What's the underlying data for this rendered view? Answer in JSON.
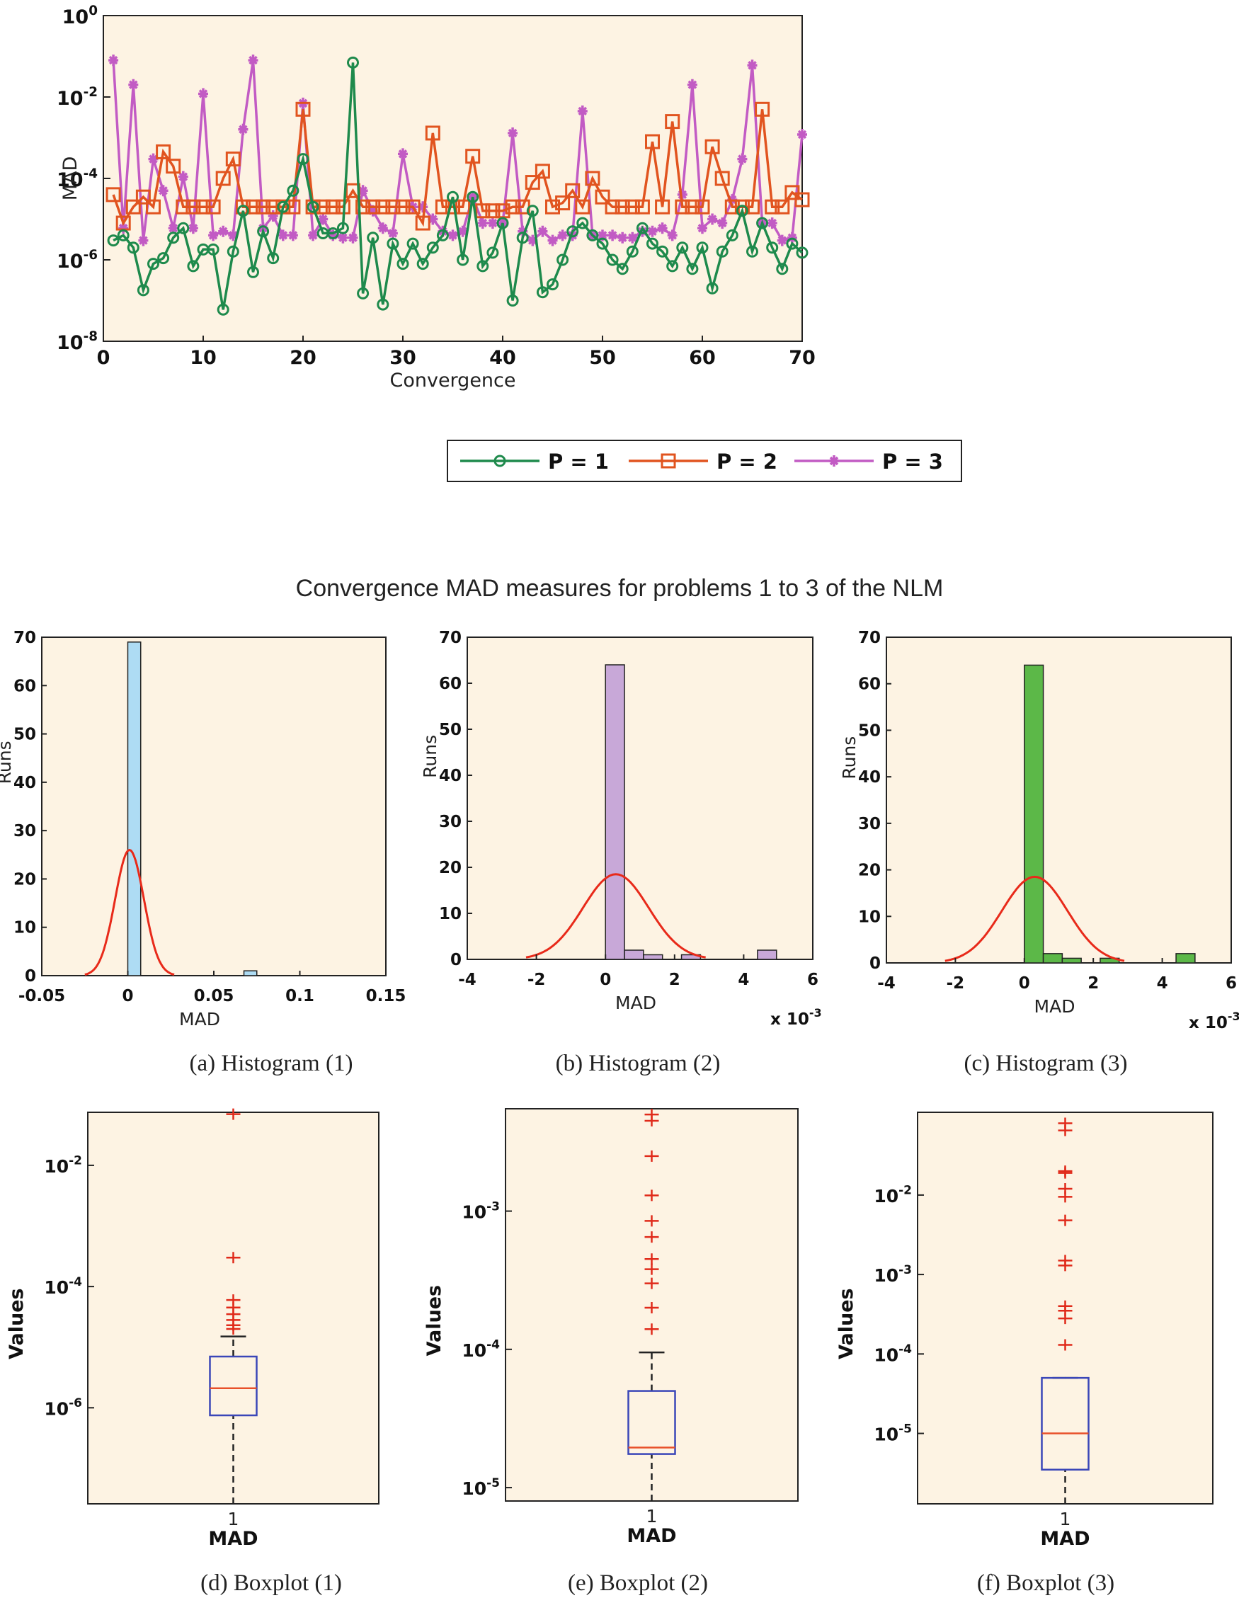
{
  "figure_title": "Convergence MAD measures for problems 1 to 3 of the NLM",
  "colors": {
    "panel_bg": "#fdf3e3",
    "p1": "#1e8a4c",
    "p2": "#e1541f",
    "p3": "#c25bc4",
    "hist1": "#aedcf4",
    "hist2": "#c8a8d8",
    "hist3": "#5cb848",
    "normal_curve": "#e82a1a",
    "box": "#3a46b8",
    "median": "#e8502a",
    "outlier": "#e02a1a"
  },
  "captions": {
    "a": "(a)  Histogram (1)",
    "b": "(b)  Histogram (2)",
    "c": "(c)  Histogram (3)",
    "d": "(d)  Boxplot (1)",
    "e": "(e)  Boxplot (2)",
    "f": "(f)  Boxplot (3)"
  },
  "chart_data": [
    {
      "id": "main",
      "type": "line",
      "title": "Convergence MAD measures for problems 1 to 3 of the NLM",
      "xlabel": "Convergence",
      "ylabel": "MAD",
      "yscale": "log",
      "xlim": [
        0,
        70
      ],
      "ylim_exp": [
        -8,
        0
      ],
      "x_ticks": [
        "0",
        "10",
        "20",
        "30",
        "40",
        "50",
        "60",
        "70"
      ],
      "y_tick_exponents": [
        "0",
        "-2",
        "-4",
        "-6",
        "-8"
      ],
      "y_tick_base": "10",
      "legend": [
        "P = 1",
        "P = 2",
        "P = 3"
      ],
      "x": [
        1,
        2,
        3,
        4,
        5,
        6,
        7,
        8,
        9,
        10,
        11,
        12,
        13,
        14,
        15,
        16,
        17,
        18,
        19,
        20,
        21,
        22,
        23,
        24,
        25,
        26,
        27,
        28,
        29,
        30,
        31,
        32,
        33,
        34,
        35,
        36,
        37,
        38,
        39,
        40,
        41,
        42,
        43,
        44,
        45,
        46,
        47,
        48,
        49,
        50,
        51,
        52,
        53,
        54,
        55,
        56,
        57,
        58,
        59,
        60,
        61,
        62,
        63,
        64,
        65,
        66,
        67,
        68,
        69,
        70
      ],
      "series": [
        {
          "name": "P = 1",
          "marker": "circle",
          "values": [
            3e-06,
            4e-06,
            2e-06,
            1.8e-07,
            8e-07,
            1.1e-06,
            3.5e-06,
            6e-06,
            7e-07,
            1.8e-06,
            1.8e-06,
            6e-08,
            1.6e-06,
            1.6e-05,
            5e-07,
            5e-06,
            1.1e-06,
            2e-05,
            5e-05,
            0.0003,
            2e-05,
            4.5e-06,
            4.5e-06,
            6e-06,
            0.07,
            1.5e-07,
            3.5e-06,
            8e-08,
            2.5e-06,
            8e-07,
            2.5e-06,
            8e-07,
            2e-06,
            4e-06,
            3.5e-05,
            1e-06,
            3.5e-05,
            7e-07,
            1.5e-06,
            8e-06,
            1e-07,
            3.5e-06,
            1.6e-05,
            1.6e-07,
            2.5e-07,
            1e-06,
            5e-06,
            8e-06,
            4e-06,
            2.5e-06,
            1e-06,
            6e-07,
            1.6e-06,
            6e-06,
            2.5e-06,
            1.6e-06,
            7e-07,
            2e-06,
            6e-07,
            2e-06,
            2e-07,
            1.6e-06,
            4e-06,
            1.6e-05,
            1.6e-06,
            8e-06,
            2e-06,
            6e-07,
            2.5e-06,
            1.5e-06
          ]
        },
        {
          "name": "P = 2",
          "marker": "square",
          "values": [
            4e-05,
            8e-06,
            2e-05,
            3.5e-05,
            2e-05,
            0.00045,
            0.0002,
            2e-05,
            2e-05,
            2e-05,
            2e-05,
            0.0001,
            0.0003,
            2e-05,
            2e-05,
            2e-05,
            2e-05,
            2e-05,
            2e-05,
            0.005,
            2e-05,
            2e-05,
            2e-05,
            2e-05,
            5e-05,
            2e-05,
            2e-05,
            2e-05,
            2e-05,
            2e-05,
            2e-05,
            8e-06,
            0.0013,
            2e-05,
            2e-05,
            2e-05,
            0.00035,
            1.6e-05,
            1.6e-05,
            1.6e-05,
            2e-05,
            2e-05,
            8e-05,
            0.00015,
            2e-05,
            2.5e-05,
            5e-05,
            2e-05,
            0.0001,
            3.5e-05,
            2e-05,
            2e-05,
            2e-05,
            2e-05,
            0.0008,
            2e-05,
            0.0025,
            2e-05,
            2e-05,
            2e-05,
            0.0006,
            0.0001,
            2e-05,
            2e-05,
            2e-05,
            0.005,
            2e-05,
            2e-05,
            4.5e-05,
            3e-05
          ]
        },
        {
          "name": "P = 3",
          "marker": "star",
          "values": [
            0.08,
            6e-06,
            0.02,
            3e-06,
            0.0003,
            5e-05,
            6e-06,
            0.00011,
            6e-06,
            0.012,
            4e-06,
            5e-06,
            4e-06,
            0.0016,
            0.08,
            6e-06,
            1.2e-05,
            4e-06,
            4e-06,
            0.007,
            4e-06,
            1e-05,
            4e-06,
            3.5e-06,
            3.5e-06,
            5e-05,
            1.6e-05,
            6e-06,
            4.5e-06,
            0.0004,
            2e-05,
            2e-05,
            1e-05,
            5e-06,
            4e-06,
            5e-06,
            3.5e-05,
            8e-06,
            8e-06,
            8e-06,
            0.0013,
            5e-06,
            3e-06,
            5e-06,
            3e-06,
            4e-06,
            4e-06,
            0.0045,
            4e-06,
            4e-06,
            4e-06,
            3.5e-06,
            3.5e-06,
            5e-06,
            5e-06,
            6e-06,
            4e-06,
            4e-05,
            0.02,
            6e-06,
            1e-05,
            8e-06,
            3e-05,
            0.0003,
            0.06,
            8e-06,
            8e-06,
            3e-06,
            3.5e-06,
            0.0012
          ]
        }
      ]
    },
    {
      "id": "hist1",
      "type": "bar",
      "title": "Histogram (1)",
      "xlabel": "MAD",
      "ylabel": "Runs",
      "xlim": [
        -0.05,
        0.15
      ],
      "ylim": [
        0,
        70
      ],
      "x_ticks": [
        -0.05,
        0,
        0.05,
        0.1,
        0.15
      ],
      "x_tick_labels": [
        "-0.05",
        "0",
        "0.05",
        "0.1",
        "0.15"
      ],
      "y_ticks": [
        0,
        10,
        20,
        30,
        40,
        50,
        60,
        70
      ],
      "x_exponent_label": "",
      "bins": [
        {
          "x0": 0.0,
          "x1": 0.0075,
          "count": 69
        },
        {
          "x0": 0.0675,
          "x1": 0.075,
          "count": 1
        }
      ],
      "normal_fit": {
        "mean": 0.001,
        "sd": 0.0084,
        "peak": 26,
        "xrange": [
          -0.025,
          0.027
        ]
      }
    },
    {
      "id": "hist2",
      "type": "bar",
      "title": "Histogram (2)",
      "xlabel": "MAD",
      "ylabel": "Runs",
      "xlim": [
        -4,
        6
      ],
      "ylim": [
        0,
        70
      ],
      "x_ticks": [
        -4,
        -2,
        0,
        2,
        4,
        6
      ],
      "x_tick_labels": [
        "-4",
        "-2",
        "0",
        "2",
        "4",
        "6"
      ],
      "y_ticks": [
        0,
        10,
        20,
        30,
        40,
        50,
        60,
        70
      ],
      "x_exponent_label": "x 10",
      "x_exponent_sup": "-3",
      "bins": [
        {
          "x0": 0.0,
          "x1": 0.55,
          "count": 64
        },
        {
          "x0": 0.55,
          "x1": 1.1,
          "count": 2
        },
        {
          "x0": 1.1,
          "x1": 1.65,
          "count": 1
        },
        {
          "x0": 2.2,
          "x1": 2.75,
          "count": 1
        },
        {
          "x0": 4.4,
          "x1": 4.95,
          "count": 2
        }
      ],
      "normal_fit": {
        "mean": 0.3,
        "sd": 0.95,
        "peak": 18.5,
        "xrange": [
          -2.3,
          2.9
        ]
      }
    },
    {
      "id": "hist3",
      "type": "bar",
      "title": "Histogram (3)",
      "xlabel": "MAD",
      "ylabel": "Runs",
      "xlim": [
        -4,
        6
      ],
      "ylim": [
        0,
        70
      ],
      "x_ticks": [
        -4,
        -2,
        0,
        2,
        4,
        6
      ],
      "x_tick_labels": [
        "-4",
        "-2",
        "0",
        "2",
        "4",
        "6"
      ],
      "y_ticks": [
        0,
        10,
        20,
        30,
        40,
        50,
        60,
        70
      ],
      "x_exponent_label": "x 10",
      "x_exponent_sup": "-3",
      "bins": [
        {
          "x0": 0.0,
          "x1": 0.55,
          "count": 64
        },
        {
          "x0": 0.55,
          "x1": 1.1,
          "count": 2
        },
        {
          "x0": 1.1,
          "x1": 1.65,
          "count": 1
        },
        {
          "x0": 2.2,
          "x1": 2.75,
          "count": 1
        },
        {
          "x0": 4.4,
          "x1": 4.95,
          "count": 2
        }
      ],
      "normal_fit": {
        "mean": 0.3,
        "sd": 0.95,
        "peak": 18.5,
        "xrange": [
          -2.3,
          2.9
        ]
      }
    },
    {
      "id": "box1",
      "type": "box",
      "title": "Boxplot (1)",
      "xlabel": "MAD",
      "ylabel": "Values",
      "category": "1",
      "yscale": "log",
      "ylim": [
        2.6e-08,
        0.075
      ],
      "y_ticks": [
        {
          "exp": "-2",
          "value": 0.01
        },
        {
          "exp": "-4",
          "value": 0.0001
        },
        {
          "exp": "-6",
          "value": 1e-06
        }
      ],
      "whisker_low": 2.6e-08,
      "q1": 7.5e-07,
      "median": 2.1e-06,
      "q3": 7e-06,
      "whisker_high": 1.5e-05,
      "outliers": [
        0.07,
        0.0003,
        6e-05,
        4.5e-05,
        3.5e-05,
        2.8e-05,
        2.3e-05,
        2e-05
      ]
    },
    {
      "id": "box2",
      "type": "box",
      "title": "Boxplot (2)",
      "xlabel": "MAD",
      "ylabel": "Values",
      "category": "1",
      "yscale": "log",
      "ylim": [
        8e-06,
        0.0055
      ],
      "y_ticks": [
        {
          "exp": "-3",
          "value": 0.001
        },
        {
          "exp": "-4",
          "value": 0.0001
        },
        {
          "exp": "-5",
          "value": 1e-05
        }
      ],
      "whisker_low": 8e-06,
      "q1": 1.75e-05,
      "median": 1.95e-05,
      "q3": 5e-05,
      "whisker_high": 9.5e-05,
      "outliers": [
        0.005,
        0.0045,
        0.0025,
        0.0013,
        0.00085,
        0.00065,
        0.00045,
        0.00038,
        0.0003,
        0.0002,
        0.00014
      ]
    },
    {
      "id": "box3",
      "type": "box",
      "title": "Boxplot (3)",
      "xlabel": "MAD",
      "ylabel": "Values",
      "category": "1",
      "yscale": "log",
      "ylim": [
        1.3e-06,
        0.11
      ],
      "y_ticks": [
        {
          "exp": "-2",
          "value": 0.01
        },
        {
          "exp": "-3",
          "value": 0.001
        },
        {
          "exp": "-4",
          "value": 0.0001
        },
        {
          "exp": "-5",
          "value": 1e-05
        }
      ],
      "whisker_low": 1.3e-06,
      "q1": 3.5e-06,
      "median": 1e-05,
      "q3": 5e-05,
      "whisker_high": 5e-05,
      "outliers": [
        0.08,
        0.065,
        0.02,
        0.019,
        0.012,
        0.0095,
        0.0048,
        0.0015,
        0.0013,
        0.0004,
        0.00035,
        0.00028,
        0.00013
      ]
    }
  ]
}
